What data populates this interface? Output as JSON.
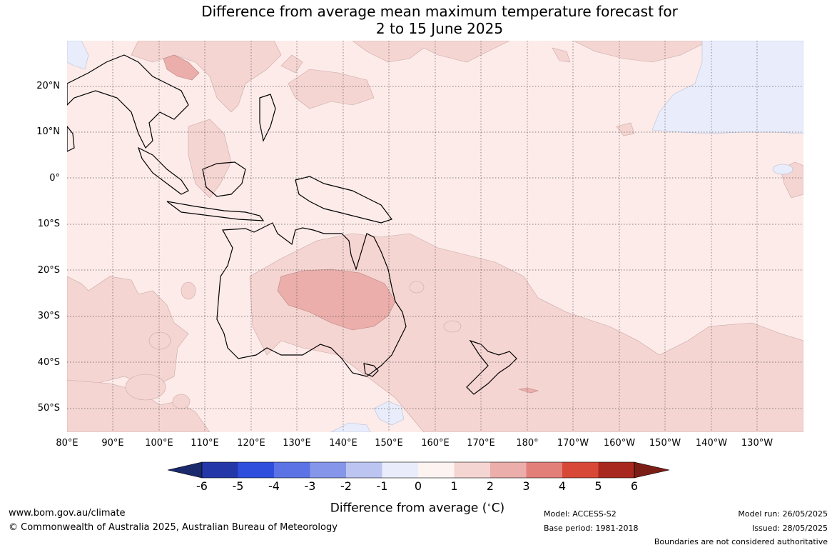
{
  "title": {
    "line1": "Difference from average mean maximum temperature forecast for",
    "line2": "2 to 15 June 2025"
  },
  "map": {
    "latitude_labels": [
      "20°N",
      "10°N",
      "0°",
      "10°S",
      "20°S",
      "30°S",
      "40°S",
      "50°S"
    ],
    "longitude_labels": [
      "80°E",
      "90°E",
      "100°E",
      "110°E",
      "120°E",
      "130°E",
      "140°E",
      "150°E",
      "160°E",
      "170°E",
      "180°",
      "170°W",
      "160°W",
      "150°W",
      "140°W",
      "130°W"
    ],
    "background_anomaly_class": "0 to 1",
    "colors": {
      "land_outline": "#000000",
      "gridline": "#555555",
      "range_0_1": "#fcebe9",
      "range_1_2": "#f5d5d2",
      "range_2_3": "#ebaeaa",
      "range_-1_0": "#e9edfb"
    }
  },
  "colorbar": {
    "ticks": [
      "-6",
      "-5",
      "-4",
      "-3",
      "-2",
      "-1",
      "0",
      "1",
      "2",
      "3",
      "4",
      "5",
      "6"
    ],
    "label": "Difference from average (°C)",
    "label_prefix": "Difference from average (",
    "label_unit_sup": "∘",
    "label_unit": "C)",
    "colors": [
      "#1a2a6c",
      "#2437a8",
      "#2f4edd",
      "#5c73e5",
      "#8596ea",
      "#bcc5f2",
      "#e9edfb",
      "#fdf3f1",
      "#f5d5d2",
      "#ebaeaa",
      "#e37f79",
      "#d84836",
      "#a8281f",
      "#7a1e16"
    ]
  },
  "footer": {
    "website": "www.bom.gov.au/climate",
    "copyright": "© Commonwealth of Australia 2025, Australian Bureau of Meteorology",
    "model": "Model: ACCESS-S2",
    "base_period": "Base period: 1981-2018",
    "model_run": "Model run: 26/05/2025",
    "issued": "Issued: 28/05/2025",
    "disclaimer": "Boundaries are not considered authoritative"
  }
}
